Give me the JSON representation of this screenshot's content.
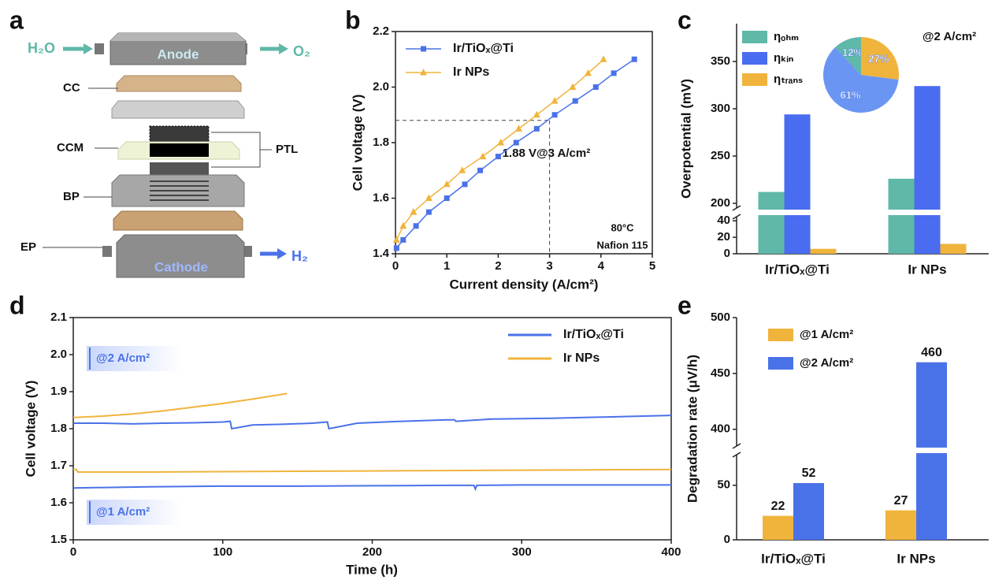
{
  "diagram": {
    "panel_label": "a",
    "inlet": "H₂O",
    "anode": "Anode",
    "outlet_anode": "O₂",
    "cc": "CC",
    "ccm": "CCM",
    "ptl": "PTL",
    "bp": "BP",
    "ep": "EP",
    "cathode": "Cathode",
    "outlet_cathode": "H₂"
  },
  "chart_data": [
    {
      "panel_label": "b",
      "type": "line",
      "xlabel": "Current density (A/cm²)",
      "ylabel": "Cell voltage (V)",
      "xlim": [
        0,
        5
      ],
      "xticks": [
        0,
        1,
        2,
        3,
        4,
        5
      ],
      "ylim": [
        1.4,
        2.2
      ],
      "yticks": [
        1.4,
        1.6,
        1.8,
        {
          "value": 2,
          "label": "2.0"
        },
        2.2
      ],
      "series": [
        {
          "name": "Ir/TiOₓ@Ti",
          "color": "#4a72e8",
          "marker": "square",
          "x": [
            0.02,
            0.15,
            0.4,
            0.65,
            1.0,
            1.35,
            1.65,
            2.0,
            2.35,
            2.75,
            3.1,
            3.5,
            3.9,
            4.25,
            4.65
          ],
          "values": [
            1.42,
            1.45,
            1.5,
            1.55,
            1.6,
            1.65,
            1.7,
            1.75,
            1.8,
            1.85,
            1.9,
            1.95,
            2.0,
            2.05,
            2.1
          ]
        },
        {
          "name": "Ir NPs",
          "color": "#f0b43c",
          "marker": "triangle",
          "x": [
            0.02,
            0.15,
            0.35,
            0.65,
            1.0,
            1.3,
            1.7,
            2.05,
            2.4,
            2.75,
            3.1,
            3.45,
            3.75,
            4.05
          ],
          "values": [
            1.45,
            1.5,
            1.55,
            1.6,
            1.65,
            1.7,
            1.75,
            1.8,
            1.85,
            1.9,
            1.95,
            2.0,
            2.05,
            2.1
          ]
        }
      ],
      "reference": {
        "x": 3,
        "y": 1.88,
        "label": "1.88 V@3 A/cm²"
      },
      "notes": [
        "80°C",
        "Nafion 115"
      ]
    },
    {
      "panel_label": "c",
      "type": "bar",
      "ylabel": "Overpotential (mV)",
      "categories": [
        "Ir/TiOₓ@Ti",
        "Ir NPs"
      ],
      "ylim": [
        0,
        390
      ],
      "ybreak": [
        45,
        195
      ],
      "yticks": [
        0,
        20,
        40,
        200,
        250,
        300,
        350
      ],
      "series": [
        {
          "name": "ηₒₕₘ",
          "color": "#5fb8a8",
          "values": [
            212,
            226
          ]
        },
        {
          "name": "ηₖᵢₙ",
          "color": "#4a6cf0",
          "values": [
            294,
            324
          ]
        },
        {
          "name": "ηₜᵣₐₙₛ",
          "color": "#f0b43c",
          "values": [
            6,
            12
          ]
        }
      ],
      "annotation": "@2 A/cm²",
      "inset": {
        "type": "pie",
        "values": [
          12,
          61,
          27
        ],
        "value_labels": [
          "12%",
          "61%",
          "27%"
        ],
        "colors": [
          "#5fb8a8",
          "#6a95f2",
          "#f0b43c"
        ],
        "direction": "counterclockwise"
      }
    },
    {
      "panel_label": "d",
      "type": "line",
      "xlabel": "Time (h)",
      "ylabel": "Cell voltage (V)",
      "xlim": [
        0,
        400
      ],
      "xticks": [
        0,
        100,
        200,
        300,
        400
      ],
      "ylim": [
        1.5,
        2.1
      ],
      "yticks": [
        1.5,
        1.6,
        1.7,
        1.8,
        1.9,
        {
          "value": 2,
          "label": "2.0"
        },
        2.1
      ],
      "annotations": [
        "@2 A/cm²",
        "@1 A/cm²"
      ],
      "series": [
        {
          "name": "Ir/TiOₓ@Ti",
          "color": "#4a72e8",
          "lines": [
            {
              "x": [
                0,
                20,
                40,
                60,
                80,
                100,
                105,
                106,
                120,
                140,
                160,
                170,
                171,
                190,
                220,
                250,
                255,
                256,
                280,
                320,
                360,
                400
              ],
              "values": [
                1.815,
                1.815,
                1.813,
                1.815,
                1.816,
                1.818,
                1.82,
                1.8,
                1.81,
                1.812,
                1.815,
                1.818,
                1.8,
                1.815,
                1.82,
                1.824,
                1.824,
                1.82,
                1.826,
                1.828,
                1.832,
                1.836
              ]
            },
            {
              "x": [
                0,
                50,
                100,
                150,
                200,
                250,
                268,
                269,
                270,
                300,
                350,
                400
              ],
              "values": [
                1.64,
                1.643,
                1.645,
                1.645,
                1.646,
                1.647,
                1.647,
                1.637,
                1.647,
                1.648,
                1.648,
                1.648
              ]
            }
          ]
        },
        {
          "name": "Ir NPs",
          "color": "#f0b43c",
          "lines": [
            {
              "x": [
                0,
                20,
                40,
                60,
                80,
                100,
                120,
                143
              ],
              "values": [
                1.83,
                1.834,
                1.84,
                1.848,
                1.858,
                1.868,
                1.88,
                1.895
              ]
            },
            {
              "x": [
                0,
                2,
                3,
                50,
                100,
                150,
                200,
                250,
                300,
                350,
                400
              ],
              "values": [
                1.69,
                1.69,
                1.683,
                1.683,
                1.684,
                1.685,
                1.686,
                1.687,
                1.688,
                1.689,
                1.69
              ]
            }
          ]
        }
      ]
    },
    {
      "panel_label": "e",
      "type": "bar",
      "ylabel": "Degradation rate (μV/h)",
      "categories": [
        "Ir/TiOₓ@Ti",
        "Ir NPs"
      ],
      "ylim": [
        0,
        500
      ],
      "ybreak": [
        78,
        385
      ],
      "yticks": [
        0,
        50,
        400,
        450,
        500
      ],
      "show_values": true,
      "series": [
        {
          "name": "@1 A/cm²",
          "color": "#f0b43c",
          "values": [
            22,
            27
          ]
        },
        {
          "name": "@2 A/cm²",
          "color": "#4a72e8",
          "values": [
            52,
            460
          ]
        }
      ]
    }
  ]
}
